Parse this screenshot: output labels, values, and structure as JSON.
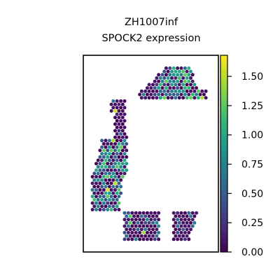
{
  "chart_data": {
    "type": "scatter",
    "title": "ZH1007inf",
    "subtitle": "SPOCK2 expression",
    "xlabel": "",
    "ylabel": "",
    "grid": false,
    "colorbar": {
      "colormap": "viridis",
      "min": 0.0,
      "max": 1.68,
      "ticks": [
        0.0,
        0.25,
        0.5,
        0.75,
        1.0,
        1.25,
        1.5
      ],
      "tick_labels": [
        "0.00",
        "0.25",
        "0.50",
        "0.75",
        "1.00",
        "1.25",
        "1.50"
      ]
    },
    "spots": {
      "count_approx": 1450,
      "dominant_value": 0.05,
      "high_value_examples": [
        1.6,
        1.55,
        1.5,
        1.45,
        1.4,
        1.3,
        1.2
      ]
    }
  },
  "colors": {
    "background": "#ffffff",
    "axes_frame": "#000000",
    "low": "#440154",
    "high": "#fde725"
  }
}
